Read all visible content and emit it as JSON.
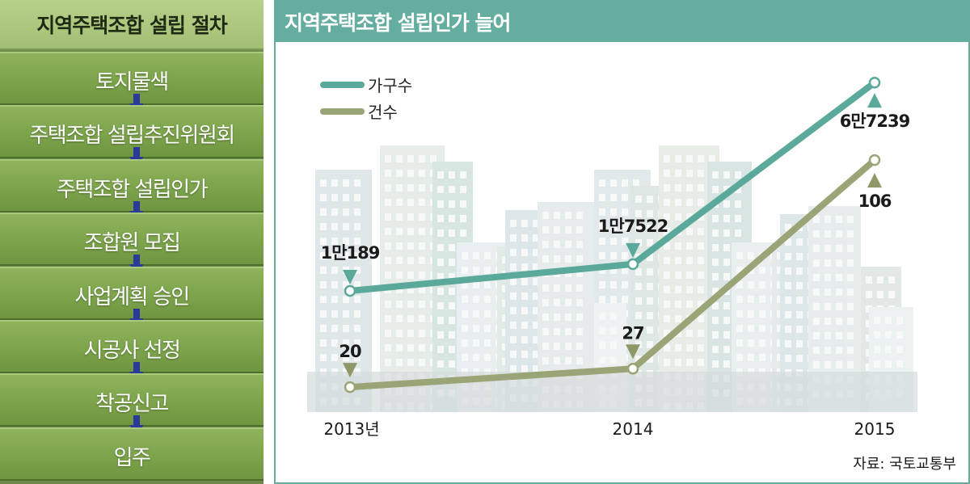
{
  "left": {
    "title": "지역주택조합 설립 절차",
    "steps": [
      "토지물색",
      "주택조합 설립추진위원회",
      "주택조합 설립인가",
      "조합원 모집",
      "사업계획 승인",
      "시공사 선정",
      "착공신고",
      "입주"
    ],
    "arrow_color": "#2b3a9a"
  },
  "right": {
    "title": "지역주택조합  설립인가 늘어",
    "source": "자료: 국토교통부"
  },
  "chart_data": {
    "type": "line",
    "x": [
      "2013년",
      "2014",
      "2015"
    ],
    "series": [
      {
        "name": "가구수",
        "color": "#5aa99a",
        "values": [
          10189,
          17522,
          67239
        ],
        "labels": [
          "1만189",
          "1만7522",
          "6만7239"
        ]
      },
      {
        "name": "건수",
        "color": "#9aa577",
        "values": [
          20,
          27,
          106
        ],
        "labels": [
          "20",
          "27",
          "106"
        ]
      }
    ],
    "legend_position": "top-left",
    "grid": false
  }
}
